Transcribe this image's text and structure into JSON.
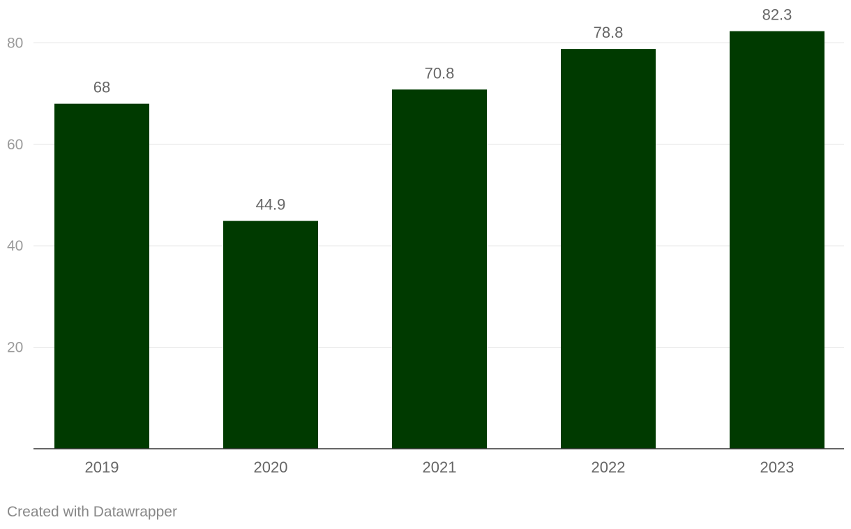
{
  "chart_data": {
    "type": "bar",
    "categories": [
      "2019",
      "2020",
      "2021",
      "2022",
      "2023"
    ],
    "values": [
      68,
      44.9,
      70.8,
      78.8,
      82.3
    ],
    "value_labels": [
      "68",
      "44.9",
      "70.8",
      "78.8",
      "82.3"
    ],
    "ylim": [
      0,
      84
    ],
    "yticks": [
      20,
      40,
      60,
      80
    ],
    "grid": true,
    "bar_color": "#003a00"
  },
  "footer": {
    "credit": "Created with Datawrapper"
  }
}
